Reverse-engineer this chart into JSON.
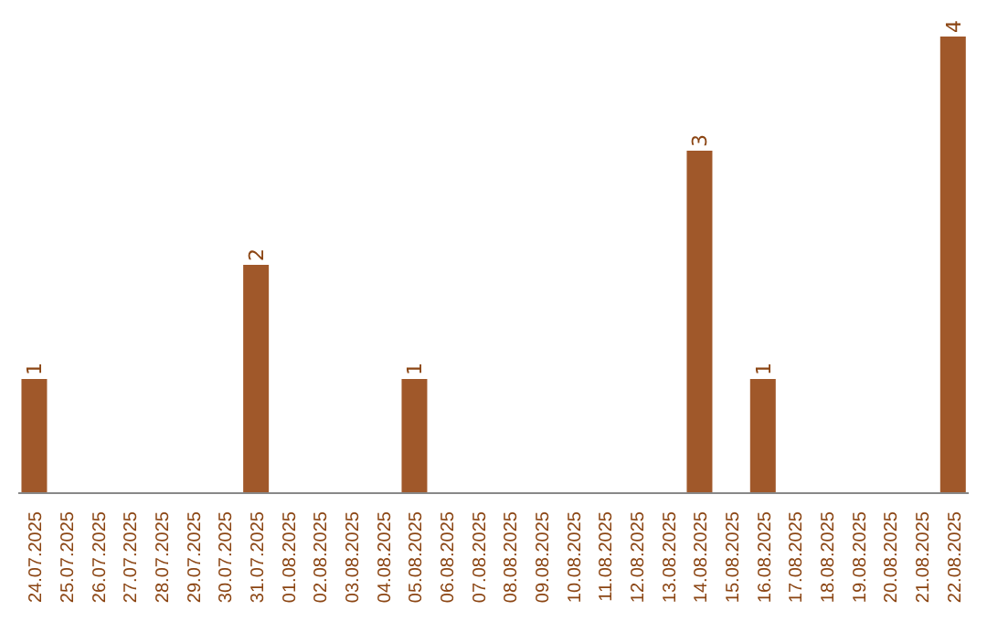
{
  "chart_data": {
    "type": "bar",
    "categories": [
      "24.07.2025",
      "25.07.2025",
      "26.07.2025",
      "27.07.2025",
      "28.07.2025",
      "29.07.2025",
      "30.07.2025",
      "31.07.2025",
      "01.08.2025",
      "02.08.2025",
      "03.08.2025",
      "04.08.2025",
      "05.08.2025",
      "06.08.2025",
      "07.08.2025",
      "08.08.2025",
      "09.08.2025",
      "10.08.2025",
      "11.08.2025",
      "12.08.2025",
      "13.08.2025",
      "14.08.2025",
      "15.08.2025",
      "16.08.2025",
      "17.08.2025",
      "18.08.2025",
      "19.08.2025",
      "20.08.2025",
      "21.08.2025",
      "22.08.2025"
    ],
    "values": [
      1,
      0,
      0,
      0,
      0,
      0,
      0,
      2,
      0,
      0,
      0,
      0,
      1,
      0,
      0,
      0,
      0,
      0,
      0,
      0,
      0,
      3,
      0,
      1,
      0,
      0,
      0,
      0,
      0,
      4
    ],
    "value_labels": [
      "1",
      null,
      null,
      null,
      null,
      null,
      null,
      "2",
      null,
      null,
      null,
      null,
      "1",
      null,
      null,
      null,
      null,
      null,
      null,
      null,
      null,
      "3",
      null,
      "1",
      null,
      null,
      null,
      null,
      null,
      "4"
    ],
    "color": "#a0582a",
    "tick_labels": "x"
  }
}
